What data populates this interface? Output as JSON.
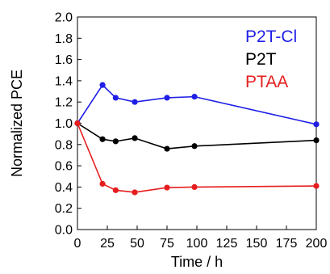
{
  "chart_data": {
    "type": "line",
    "title": "",
    "xlabel": "Time  / h",
    "ylabel": "Normalized  PCE",
    "xlim": [
      0,
      200
    ],
    "ylim": [
      0,
      2.0
    ],
    "x_ticks": [
      0,
      25,
      50,
      75,
      100,
      125,
      150,
      175,
      200
    ],
    "y_ticks": [
      0.0,
      0.2,
      0.4,
      0.6,
      0.8,
      1.0,
      1.2,
      1.4,
      1.6,
      1.8,
      2.0
    ],
    "x_tick_labels": [
      "0",
      "25",
      "50",
      "75",
      "100",
      "125",
      "150",
      "175",
      "200"
    ],
    "y_tick_labels": [
      "0.0",
      "0.2",
      "0.4",
      "0.6",
      "0.8",
      "1.0",
      "1.2",
      "1.4",
      "1.6",
      "1.8",
      "2.0"
    ],
    "grid": false,
    "legend_position": "top-right",
    "series": [
      {
        "name": "P2T-Cl",
        "color": "#1f1fe6",
        "x": [
          0,
          21,
          32,
          48,
          75,
          98,
          200
        ],
        "y": [
          1.0,
          1.36,
          1.24,
          1.2,
          1.24,
          1.25,
          0.99
        ]
      },
      {
        "name": "P2T",
        "color": "#000000",
        "x": [
          0,
          21,
          32,
          48,
          75,
          98,
          200
        ],
        "y": [
          1.0,
          0.85,
          0.83,
          0.86,
          0.76,
          0.785,
          0.84
        ]
      },
      {
        "name": "PTAA",
        "color": "#e61e1e",
        "x": [
          0,
          21,
          32,
          48,
          75,
          98,
          200
        ],
        "y": [
          1.0,
          0.43,
          0.37,
          0.35,
          0.395,
          0.4,
          0.41
        ]
      }
    ]
  }
}
